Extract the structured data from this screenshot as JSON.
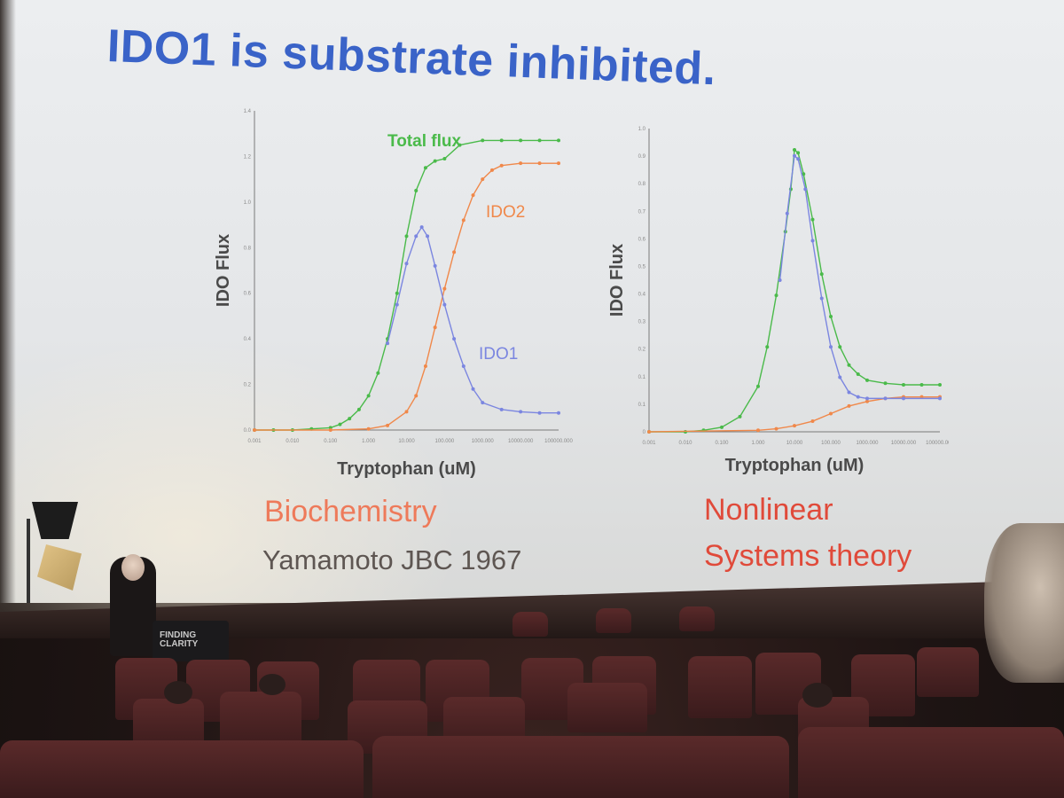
{
  "slide": {
    "title": "IDO1 is substrate inhibited.",
    "caption_left_1": "Biochemistry",
    "caption_left_2": "Yamamoto JBC 1967",
    "caption_right_1": "Nonlinear",
    "caption_right_2": "Systems theory"
  },
  "podium": {
    "label": "FINDING\nCLARITY"
  },
  "colors": {
    "title": "#3a63c8",
    "green": "#4aba4a",
    "orange": "#f0884a",
    "blue": "#7b86e0",
    "caption_orange": "#ee7a5a",
    "caption_red": "#e04a3a"
  },
  "chart_data": [
    {
      "type": "line",
      "xlabel": "Tryptophan (uM)",
      "ylabel": "IDO Flux",
      "xscale": "log",
      "x_ticks": [
        "0.001",
        "0.010",
        "0.100",
        "1.000",
        "10.000",
        "100.000",
        "1000.000",
        "10000.000",
        "100000.000"
      ],
      "y_ticks": [
        "0.0",
        "0.2",
        "0.4",
        "0.6",
        "0.8",
        "1.0",
        "1.2",
        "1.4"
      ],
      "ylim": [
        0,
        1.4
      ],
      "xlim_log10": [
        -3,
        5
      ],
      "series": [
        {
          "name": "Total flux",
          "color": "green",
          "points": [
            [
              -3,
              0
            ],
            [
              -2.5,
              0
            ],
            [
              -2,
              0
            ],
            [
              -1.5,
              0.005
            ],
            [
              -1,
              0.01
            ],
            [
              -0.75,
              0.025
            ],
            [
              -0.5,
              0.05
            ],
            [
              -0.25,
              0.09
            ],
            [
              0,
              0.15
            ],
            [
              0.25,
              0.25
            ],
            [
              0.5,
              0.4
            ],
            [
              0.75,
              0.6
            ],
            [
              1,
              0.85
            ],
            [
              1.25,
              1.05
            ],
            [
              1.5,
              1.15
            ],
            [
              1.75,
              1.18
            ],
            [
              2,
              1.19
            ],
            [
              2.4,
              1.25
            ],
            [
              3,
              1.27
            ],
            [
              3.5,
              1.27
            ],
            [
              4,
              1.27
            ],
            [
              4.5,
              1.27
            ],
            [
              5,
              1.27
            ]
          ]
        },
        {
          "name": "IDO2",
          "color": "orange",
          "points": [
            [
              -3,
              0
            ],
            [
              -1,
              0
            ],
            [
              0,
              0.005
            ],
            [
              0.5,
              0.02
            ],
            [
              1,
              0.08
            ],
            [
              1.25,
              0.15
            ],
            [
              1.5,
              0.28
            ],
            [
              1.75,
              0.45
            ],
            [
              2,
              0.62
            ],
            [
              2.25,
              0.78
            ],
            [
              2.5,
              0.92
            ],
            [
              2.75,
              1.03
            ],
            [
              3,
              1.1
            ],
            [
              3.25,
              1.14
            ],
            [
              3.5,
              1.16
            ],
            [
              4,
              1.17
            ],
            [
              4.5,
              1.17
            ],
            [
              5,
              1.17
            ]
          ]
        },
        {
          "name": "IDO1",
          "color": "blue",
          "points": [
            [
              0.5,
              0.38
            ],
            [
              0.75,
              0.55
            ],
            [
              1,
              0.73
            ],
            [
              1.25,
              0.85
            ],
            [
              1.4,
              0.89
            ],
            [
              1.55,
              0.85
            ],
            [
              1.75,
              0.72
            ],
            [
              2,
              0.55
            ],
            [
              2.25,
              0.4
            ],
            [
              2.5,
              0.28
            ],
            [
              2.75,
              0.18
            ],
            [
              3,
              0.12
            ],
            [
              3.5,
              0.09
            ],
            [
              4,
              0.08
            ],
            [
              4.5,
              0.075
            ],
            [
              5,
              0.075
            ]
          ]
        }
      ],
      "annotations": [
        "Total flux",
        "IDO2",
        "IDO1"
      ]
    },
    {
      "type": "line",
      "xlabel": "Tryptophan (uM)",
      "ylabel": "IDO Flux",
      "xscale": "log",
      "x_ticks": [
        "0.001",
        "0.010",
        "0.100",
        "1.000",
        "10.000",
        "100.000",
        "1000.000",
        "10000.000",
        "100000.000"
      ],
      "y_ticks": [
        "0",
        "0.1",
        "0.1",
        "0.2",
        "0.3",
        "0.4",
        "0.5",
        "0.6",
        "0.7",
        "0.8",
        "0.9",
        "1.0"
      ],
      "ylim": [
        0,
        1.0
      ],
      "xlim_log10": [
        -3,
        5
      ],
      "series": [
        {
          "color": "green",
          "points": [
            [
              -3,
              0
            ],
            [
              -2,
              0
            ],
            [
              -1.5,
              0.005
            ],
            [
              -1,
              0.015
            ],
            [
              -0.5,
              0.05
            ],
            [
              0,
              0.15
            ],
            [
              0.25,
              0.28
            ],
            [
              0.5,
              0.45
            ],
            [
              0.75,
              0.66
            ],
            [
              0.9,
              0.8
            ],
            [
              1,
              0.93
            ],
            [
              1.1,
              0.92
            ],
            [
              1.25,
              0.85
            ],
            [
              1.5,
              0.7
            ],
            [
              1.75,
              0.52
            ],
            [
              2,
              0.38
            ],
            [
              2.25,
              0.28
            ],
            [
              2.5,
              0.22
            ],
            [
              2.75,
              0.19
            ],
            [
              3,
              0.17
            ],
            [
              3.5,
              0.16
            ],
            [
              4,
              0.155
            ],
            [
              4.5,
              0.155
            ],
            [
              5,
              0.155
            ]
          ]
        },
        {
          "color": "orange",
          "points": [
            [
              -3,
              0
            ],
            [
              0,
              0.005
            ],
            [
              0.5,
              0.01
            ],
            [
              1,
              0.02
            ],
            [
              1.5,
              0.035
            ],
            [
              2,
              0.06
            ],
            [
              2.5,
              0.085
            ],
            [
              3,
              0.1
            ],
            [
              3.5,
              0.11
            ],
            [
              4,
              0.115
            ],
            [
              4.5,
              0.115
            ],
            [
              5,
              0.115
            ]
          ]
        },
        {
          "color": "blue",
          "points": [
            [
              0.6,
              0.5
            ],
            [
              0.8,
              0.72
            ],
            [
              1,
              0.91
            ],
            [
              1.1,
              0.9
            ],
            [
              1.3,
              0.8
            ],
            [
              1.5,
              0.63
            ],
            [
              1.75,
              0.44
            ],
            [
              2,
              0.28
            ],
            [
              2.25,
              0.18
            ],
            [
              2.5,
              0.13
            ],
            [
              2.75,
              0.115
            ],
            [
              3,
              0.11
            ],
            [
              3.5,
              0.11
            ],
            [
              4,
              0.11
            ],
            [
              5,
              0.11
            ]
          ]
        }
      ]
    }
  ]
}
